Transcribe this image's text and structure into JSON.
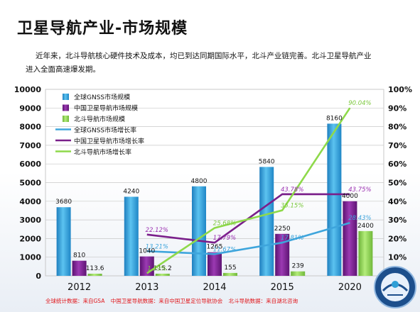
{
  "page": {
    "title": "卫星导航产业-市场规模",
    "intro_line1": "近年来，北斗导航核心硬件技术及成本，均已到达同期国际水平，北斗产业链完善。北斗卫星导航产业",
    "intro_line2": "进入全面高速爆发期。"
  },
  "footer": {
    "items": [
      "全球统计数据：来自GSA",
      "中国卫星导航数据：来自中国卫星定位导航协会",
      "北斗导航数据：来自湖北咨询"
    ]
  },
  "colors": {
    "global_bar": "#2e9ed6",
    "china_bar": "#7b1f8e",
    "beidou_bar": "#8fd14f",
    "global_line": "#3ea5dc",
    "china_line": "#7a1f8a",
    "beidou_line": "#8ed94a",
    "grid": "#c8c8c8"
  },
  "chart_data": {
    "type": "bar",
    "categories": [
      "2012",
      "2013",
      "2014",
      "2015",
      "2020"
    ],
    "ylim_left": [
      0,
      10000
    ],
    "yticks_left": [
      0,
      1000,
      2000,
      3000,
      4000,
      5000,
      6000,
      7000,
      8000,
      9000,
      10000
    ],
    "ylim_right": [
      0,
      100
    ],
    "yticks_right": [
      "0%",
      "10%",
      "20%",
      "30%",
      "40%",
      "50%",
      "60%",
      "70%",
      "80%",
      "90%",
      "100%"
    ],
    "legend_position": "top-left",
    "bar_series": [
      {
        "name": "全球GNSS市场规模",
        "values": [
          3680,
          4240,
          4800,
          5840,
          8160
        ],
        "labels": [
          "3680",
          "4240",
          "4800",
          "5840",
          "8160"
        ]
      },
      {
        "name": "中国卫星导航市场规模",
        "values": [
          810,
          1040,
          1265,
          2250,
          4000
        ],
        "labels": [
          "810",
          "1040",
          "1265",
          "2250",
          "4000"
        ]
      },
      {
        "name": "北斗导航市场规模",
        "values": [
          113.6,
          115.2,
          155,
          239,
          2400
        ],
        "labels": [
          "113.6",
          "115.2",
          "155",
          "239",
          "2400"
        ]
      }
    ],
    "line_series": [
      {
        "name": "全球GNSS市场增长率",
        "values": [
          null,
          13.21,
          11.67,
          17.81,
          28.43
        ],
        "labels": [
          "",
          "13.21%",
          "11.67%",
          "17.81%",
          "28.43%"
        ]
      },
      {
        "name": "中国卫星导航市场增长率",
        "values": [
          null,
          22.12,
          17.79,
          43.78,
          43.75
        ],
        "labels": [
          "",
          "22.12%",
          "17.79%",
          "43.78%",
          "43.75%"
        ]
      },
      {
        "name": "北斗导航市场增长率",
        "values": [
          null,
          1.39,
          25.68,
          35.15,
          90.04
        ],
        "labels": [
          "",
          "1.39%",
          "25.68%",
          "35.15%",
          "90.04%"
        ]
      }
    ]
  }
}
